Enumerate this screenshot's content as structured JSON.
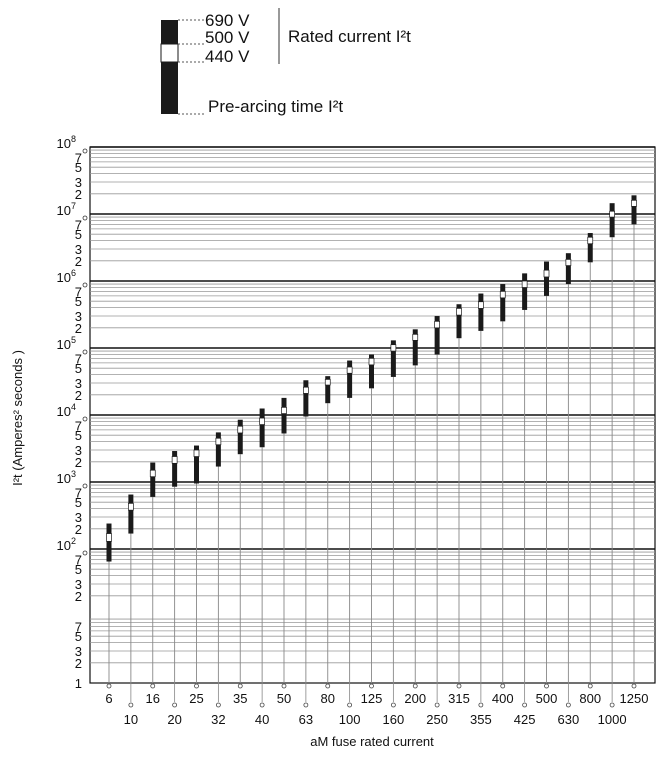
{
  "legend": {
    "voltages": [
      "690 V",
      "500 V",
      "440 V"
    ],
    "rated_label": "Rated current I²t",
    "prearc_label": "Pre-arcing time I²t"
  },
  "colors": {
    "segment_dark": "#1a1a1a",
    "segment_light": "#ffffff",
    "stem": "#888888",
    "grid_major": "#111111",
    "grid_minor": "#999999"
  },
  "chart_data": {
    "type": "bar",
    "xlabel": "aM fuse rated current",
    "ylabel": "I²t (Amperes² seconds )",
    "yscale": "log",
    "ylim": [
      1,
      100000000
    ],
    "y_major_ticks": [
      {
        "value": 100,
        "base": "10",
        "exp": "2"
      },
      {
        "value": 1000,
        "base": "10",
        "exp": "3"
      },
      {
        "value": 10000,
        "base": "10",
        "exp": "4"
      },
      {
        "value": 100000,
        "base": "10",
        "exp": "5"
      },
      {
        "value": 1000000,
        "base": "10",
        "exp": "6"
      },
      {
        "value": 10000000,
        "base": "10",
        "exp": "7"
      },
      {
        "value": 100000000,
        "base": "10",
        "exp": "8"
      }
    ],
    "y_minor_labels": [
      "1",
      "2",
      "3",
      "5",
      "7"
    ],
    "categories": [
      "6",
      "10",
      "16",
      "20",
      "25",
      "32",
      "35",
      "40",
      "50",
      "63",
      "80",
      "100",
      "125",
      "160",
      "200",
      "250",
      "315",
      "355",
      "400",
      "425",
      "500",
      "630",
      "800",
      "1000",
      "1250"
    ],
    "series": [
      {
        "name": "Pre-arcing time I²t",
        "values": [
          65,
          170,
          600,
          850,
          950,
          1700,
          2600,
          3300,
          5300,
          9500,
          15000,
          18000,
          25000,
          37000,
          55000,
          80000,
          140000,
          180000,
          250000,
          370000,
          600000,
          900000,
          1900000,
          4500000,
          7000000
        ]
      },
      {
        "name": "440 V",
        "values": [
          130,
          380,
          1200,
          1900,
          2400,
          3600,
          5400,
          7200,
          10500,
          21000,
          28000,
          42000,
          56000,
          90000,
          130000,
          200000,
          310000,
          390000,
          560000,
          800000,
          1150000,
          1700000,
          3600000,
          9000000,
          13000000
        ]
      },
      {
        "name": "500 V",
        "values": [
          170,
          480,
          1500,
          2400,
          3000,
          4500,
          6800,
          9000,
          13000,
          26000,
          34000,
          52000,
          70000,
          112000,
          160000,
          250000,
          390000,
          490000,
          700000,
          1000000,
          1450000,
          2100000,
          4500000,
          11000000,
          16000000
        ]
      },
      {
        "name": "690 V",
        "values": [
          240,
          650,
          1950,
          2900,
          3500,
          5500,
          8500,
          12500,
          18000,
          33000,
          38000,
          65000,
          80000,
          130000,
          190000,
          300000,
          450000,
          650000,
          900000,
          1300000,
          1950000,
          2600000,
          5200000,
          14500000,
          19000000
        ]
      }
    ],
    "grid": true
  }
}
